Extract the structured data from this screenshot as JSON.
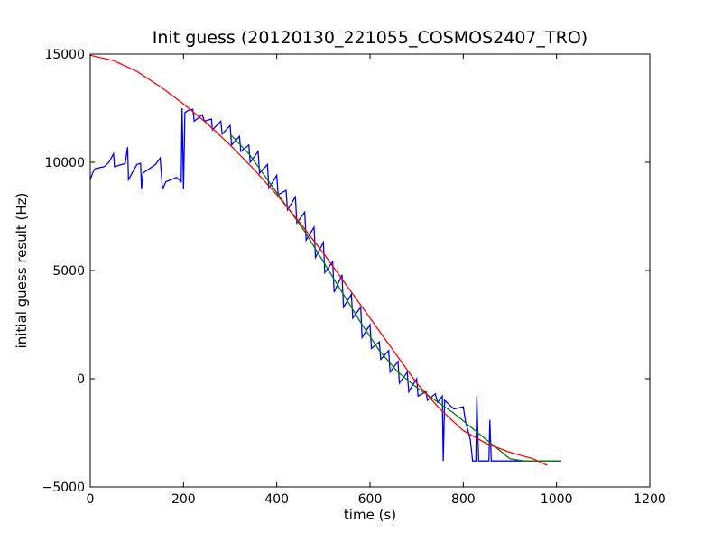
{
  "chart_data": {
    "type": "line",
    "title": "Init guess (20120130_221055_COSMOS2407_TRO)",
    "xlabel": "time (s)",
    "ylabel": "initial guess result (Hz)",
    "xlim": [
      0,
      1200
    ],
    "ylim": [
      -5000,
      15000
    ],
    "x_ticks": [
      {
        "value": 0,
        "label": "0"
      },
      {
        "value": 200,
        "label": "200"
      },
      {
        "value": 400,
        "label": "400"
      },
      {
        "value": 600,
        "label": "600"
      },
      {
        "value": 800,
        "label": "800"
      },
      {
        "value": 1000,
        "label": "1000"
      },
      {
        "value": 1200,
        "label": "1200"
      }
    ],
    "y_ticks": [
      {
        "value": -5000,
        "label": "−5000"
      },
      {
        "value": 0,
        "label": "0"
      },
      {
        "value": 5000,
        "label": "5000"
      },
      {
        "value": 10000,
        "label": "10000"
      },
      {
        "value": 15000,
        "label": "15000"
      }
    ],
    "grid": false,
    "legend": "none",
    "series": [
      {
        "color": "#0000ff",
        "points": [
          [
            0,
            9200
          ],
          [
            5,
            9500
          ],
          [
            10,
            9700
          ],
          [
            30,
            9800
          ],
          [
            40,
            10000
          ],
          [
            50,
            10400
          ],
          [
            52,
            9800
          ],
          [
            75,
            9950
          ],
          [
            80,
            10700
          ],
          [
            82,
            9200
          ],
          [
            100,
            9900
          ],
          [
            108,
            9950
          ],
          [
            110,
            8750
          ],
          [
            113,
            9500
          ],
          [
            140,
            9900
          ],
          [
            150,
            10200
          ],
          [
            155,
            8750
          ],
          [
            162,
            9100
          ],
          [
            185,
            9300
          ],
          [
            195,
            9100
          ],
          [
            197,
            12500
          ],
          [
            200,
            8750
          ],
          [
            203,
            12300
          ],
          [
            210,
            12400
          ],
          [
            220,
            12450
          ],
          [
            223,
            11900
          ],
          [
            240,
            12200
          ],
          [
            245,
            11900
          ],
          [
            260,
            12000
          ],
          [
            262,
            11500
          ],
          [
            280,
            11900
          ],
          [
            283,
            11300
          ],
          [
            300,
            11700
          ],
          [
            303,
            10800
          ],
          [
            320,
            11200
          ],
          [
            323,
            10500
          ],
          [
            340,
            10800
          ],
          [
            343,
            10000
          ],
          [
            360,
            10500
          ],
          [
            363,
            9500
          ],
          [
            380,
            9900
          ],
          [
            383,
            8800
          ],
          [
            400,
            9400
          ],
          [
            403,
            8500
          ],
          [
            420,
            8700
          ],
          [
            423,
            7800
          ],
          [
            440,
            8400
          ],
          [
            443,
            7200
          ],
          [
            460,
            7700
          ],
          [
            463,
            6400
          ],
          [
            480,
            7000
          ],
          [
            483,
            5600
          ],
          [
            500,
            6300
          ],
          [
            503,
            4900
          ],
          [
            520,
            5400
          ],
          [
            523,
            4000
          ],
          [
            540,
            4800
          ],
          [
            543,
            3300
          ],
          [
            560,
            3900
          ],
          [
            563,
            2800
          ],
          [
            580,
            3300
          ],
          [
            583,
            1900
          ],
          [
            600,
            2500
          ],
          [
            603,
            1400
          ],
          [
            620,
            1700
          ],
          [
            623,
            900
          ],
          [
            640,
            1300
          ],
          [
            643,
            300
          ],
          [
            660,
            800
          ],
          [
            663,
            -200
          ],
          [
            680,
            300
          ],
          [
            683,
            -600
          ],
          [
            700,
            0
          ],
          [
            703,
            -800
          ],
          [
            720,
            -600
          ],
          [
            723,
            -1000
          ],
          [
            740,
            -700
          ],
          [
            745,
            -1100
          ],
          [
            755,
            -800
          ],
          [
            757,
            -3800
          ],
          [
            760,
            -1000
          ],
          [
            770,
            -1200
          ],
          [
            780,
            -1400
          ],
          [
            800,
            -1300
          ],
          [
            805,
            -2000
          ],
          [
            815,
            -2800
          ],
          [
            820,
            -3800
          ],
          [
            827,
            -3800
          ],
          [
            829,
            -800
          ],
          [
            833,
            -3800
          ],
          [
            855,
            -3800
          ],
          [
            857,
            -1900
          ],
          [
            860,
            -3800
          ],
          [
            900,
            -3800
          ],
          [
            1010,
            -3800
          ]
        ]
      },
      {
        "color": "#008000",
        "points": [
          [
            300,
            11300
          ],
          [
            340,
            10400
          ],
          [
            380,
            9200
          ],
          [
            420,
            8000
          ],
          [
            460,
            6800
          ],
          [
            500,
            5400
          ],
          [
            540,
            4000
          ],
          [
            580,
            2600
          ],
          [
            620,
            1300
          ],
          [
            660,
            300
          ],
          [
            700,
            -400
          ],
          [
            740,
            -1000
          ],
          [
            780,
            -1600
          ],
          [
            820,
            -2300
          ],
          [
            860,
            -3000
          ],
          [
            900,
            -3700
          ],
          [
            930,
            -3800
          ],
          [
            1005,
            -3800
          ]
        ]
      },
      {
        "color": "#ff0000",
        "points": [
          [
            0,
            14950
          ],
          [
            50,
            14700
          ],
          [
            100,
            14200
          ],
          [
            150,
            13500
          ],
          [
            200,
            12700
          ],
          [
            250,
            11800
          ],
          [
            300,
            10800
          ],
          [
            350,
            9700
          ],
          [
            400,
            8500
          ],
          [
            450,
            7200
          ],
          [
            500,
            5800
          ],
          [
            550,
            4300
          ],
          [
            600,
            2800
          ],
          [
            650,
            1300
          ],
          [
            700,
            -200
          ],
          [
            750,
            -1400
          ],
          [
            800,
            -2400
          ],
          [
            850,
            -3000
          ],
          [
            900,
            -3400
          ],
          [
            950,
            -3700
          ],
          [
            980,
            -4000
          ]
        ]
      }
    ]
  }
}
